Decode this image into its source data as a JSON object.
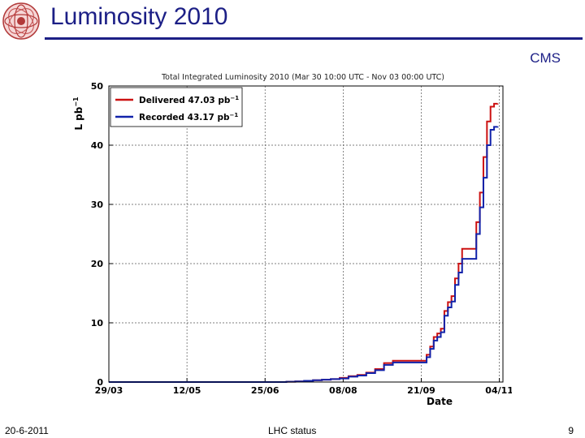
{
  "slide": {
    "title": "Luminosity 2010",
    "experiment_label": "CMS",
    "footer_date": "20-6-2011",
    "footer_center": "LHC status",
    "page_number": "9"
  },
  "colors": {
    "title": "#1c1f86",
    "delivered": "#cc1111",
    "recorded": "#1122aa"
  },
  "chart_data": {
    "type": "line",
    "title": "Total Integrated Luminosity 2010 (Mar 30 10:00 UTC - Nov 03 00:00 UTC)",
    "xlabel": "Date",
    "ylabel": "L pb",
    "ylabel_superscript": "−1",
    "x_unit": "days since 29/03",
    "xlim": [
      0,
      222
    ],
    "ylim": [
      0,
      50
    ],
    "grid": true,
    "legend_position": "top-left",
    "x_ticks": [
      {
        "label": "29/03",
        "value": 0
      },
      {
        "label": "12/05",
        "value": 44
      },
      {
        "label": "25/06",
        "value": 88
      },
      {
        "label": "08/08",
        "value": 132
      },
      {
        "label": "21/09",
        "value": 176
      },
      {
        "label": "04/11",
        "value": 220
      }
    ],
    "y_ticks": [
      0,
      10,
      20,
      30,
      40,
      50
    ],
    "series": [
      {
        "name": "Delivered",
        "legend_label": "Delivered 47.03 pb",
        "legend_superscript": "−1",
        "color": "#cc1111",
        "x": [
          0,
          60,
          100,
          105,
          110,
          115,
          120,
          125,
          130,
          135,
          140,
          145,
          150,
          155,
          160,
          170,
          177,
          179,
          181,
          183,
          185,
          187,
          189,
          191,
          193,
          195,
          197,
          199,
          201,
          203,
          205,
          207,
          209,
          211,
          213,
          215,
          217,
          219
        ],
        "values": [
          0,
          0,
          0.05,
          0.1,
          0.2,
          0.3,
          0.4,
          0.5,
          0.7,
          1.0,
          1.2,
          1.6,
          2.2,
          3.2,
          3.6,
          3.6,
          3.6,
          4.6,
          6.0,
          7.6,
          8.2,
          9.0,
          12.0,
          13.5,
          14.5,
          17.5,
          20.0,
          22.5,
          22.5,
          22.5,
          22.5,
          27.0,
          32.0,
          38.0,
          44.0,
          46.5,
          47.0,
          47.03
        ]
      },
      {
        "name": "Recorded",
        "legend_label": "Recorded 43.17 pb",
        "legend_superscript": "−1",
        "color": "#1122aa",
        "x": [
          0,
          60,
          100,
          105,
          110,
          115,
          120,
          125,
          130,
          135,
          140,
          145,
          150,
          155,
          160,
          170,
          177,
          179,
          181,
          183,
          185,
          187,
          189,
          191,
          193,
          195,
          197,
          199,
          201,
          203,
          205,
          207,
          209,
          211,
          213,
          215,
          217,
          219
        ],
        "values": [
          0,
          0,
          0.05,
          0.1,
          0.2,
          0.3,
          0.4,
          0.5,
          0.6,
          0.9,
          1.1,
          1.5,
          2.0,
          2.9,
          3.3,
          3.3,
          3.3,
          4.2,
          5.6,
          7.0,
          7.6,
          8.4,
          11.2,
          12.6,
          13.6,
          16.4,
          18.5,
          20.8,
          20.8,
          20.8,
          20.8,
          25.0,
          29.5,
          34.5,
          40.0,
          42.6,
          43.1,
          43.17
        ]
      }
    ]
  }
}
